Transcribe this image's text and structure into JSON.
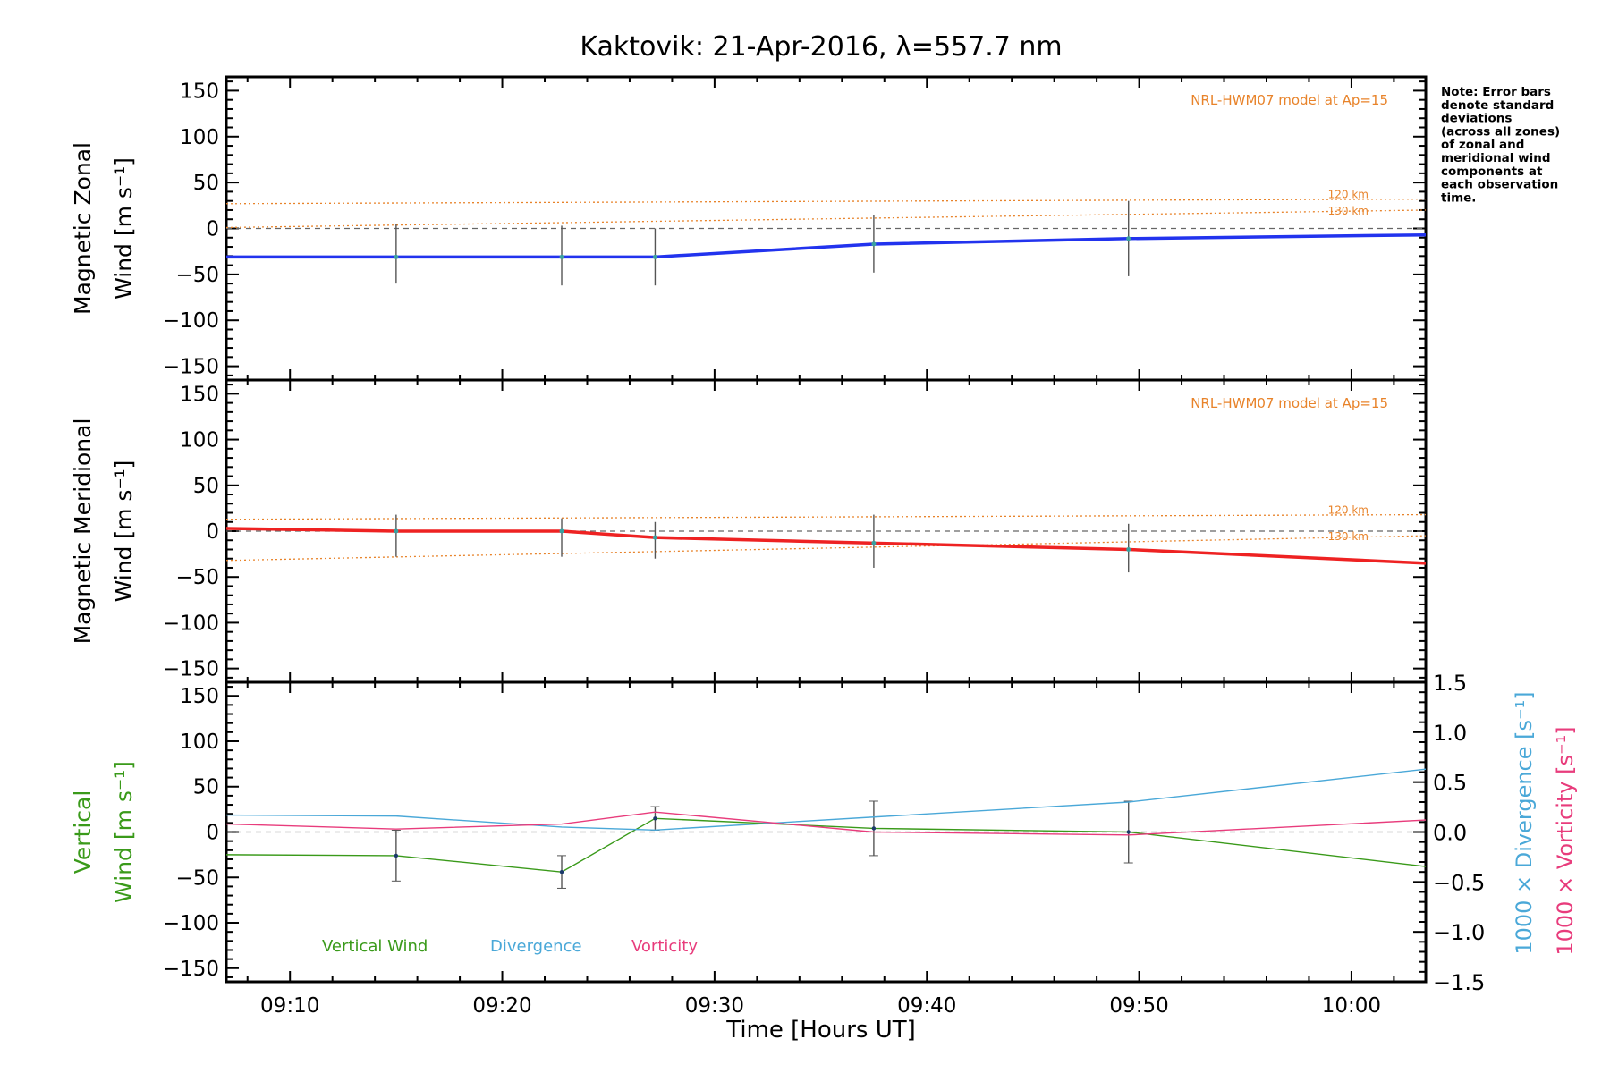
{
  "title": "Kaktovik: 21-Apr-2016, λ=557.7 nm",
  "note": [
    "Note: Error bars",
    "denote standard",
    "deviations",
    "(across all zones)",
    "of zonal and",
    "meridional wind",
    "components at",
    "each observation",
    "time."
  ],
  "colors": {
    "zonal": "#2233ee",
    "meridional": "#ee2222",
    "model": "#e8832a",
    "vertical": "#3a9a1a",
    "divergence": "#4aa8d8",
    "vorticity": "#e83c7c"
  },
  "chart_data": [
    {
      "type": "line",
      "panel": "zonal",
      "ylabel": [
        "Magnetic Zonal",
        "Wind [m s⁻¹]"
      ],
      "model_label": "NRL-HWM07 model at Ap=15",
      "x_unit": "minutes after 09:00 UT",
      "xlim": [
        7,
        63.5
      ],
      "ylim": [
        -165,
        165
      ],
      "yticks": [
        150,
        100,
        50,
        0,
        -50,
        -100,
        -150
      ],
      "series": [
        {
          "name": "Magnetic Zonal Wind",
          "x": [
            7,
            15,
            22.8,
            27.2,
            37.5,
            49.5,
            63.5
          ],
          "values": [
            -31,
            -31,
            -31,
            -31,
            -17,
            -11,
            -7
          ]
        }
      ],
      "model": [
        {
          "name": "120 km",
          "x": [
            7,
            63.5
          ],
          "values": [
            27,
            32
          ]
        },
        {
          "name": "130 km",
          "x": [
            7,
            63.5
          ],
          "values": [
            1,
            20
          ]
        }
      ],
      "errorbars": [
        {
          "x": 15,
          "low": -60,
          "high": 5
        },
        {
          "x": 22.8,
          "low": -62,
          "high": 3
        },
        {
          "x": 27.2,
          "low": -62,
          "high": 0
        },
        {
          "x": 37.5,
          "low": -48,
          "high": 15
        },
        {
          "x": 49.5,
          "low": -52,
          "high": 30
        }
      ]
    },
    {
      "type": "line",
      "panel": "meridional",
      "ylabel": [
        "Magnetic Meridional",
        "Wind [m s⁻¹]"
      ],
      "model_label": "NRL-HWM07 model at Ap=15",
      "xlim": [
        7,
        63.5
      ],
      "ylim": [
        -165,
        165
      ],
      "yticks": [
        150,
        100,
        50,
        0,
        -50,
        -100,
        -150
      ],
      "series": [
        {
          "name": "Magnetic Meridional Wind",
          "x": [
            7,
            15,
            22.8,
            27.2,
            37.5,
            49.5,
            63.5
          ],
          "values": [
            3,
            0,
            0,
            -7,
            -13,
            -20,
            -35
          ]
        }
      ],
      "model": [
        {
          "name": "120 km",
          "x": [
            7,
            63.5
          ],
          "values": [
            13,
            18
          ]
        },
        {
          "name": "130 km",
          "x": [
            7,
            63.5
          ],
          "values": [
            -32,
            -5
          ]
        }
      ],
      "errorbars": [
        {
          "x": 15,
          "low": -28,
          "high": 18
        },
        {
          "x": 22.8,
          "low": -28,
          "high": 14
        },
        {
          "x": 27.2,
          "low": -30,
          "high": 10
        },
        {
          "x": 37.5,
          "low": -40,
          "high": 18
        },
        {
          "x": 49.5,
          "low": -45,
          "high": 8
        }
      ]
    },
    {
      "type": "line",
      "panel": "vertical",
      "ylabel": [
        "Vertical",
        "Wind [m s⁻¹]"
      ],
      "y2label_divergence": "1000 × Divergence [s⁻¹]",
      "y2label_vorticity": "1000 × Vorticity [s⁻¹]",
      "xlabel": "Time [Hours UT]",
      "xlim": [
        7,
        63.5
      ],
      "ylim": [
        -165,
        165
      ],
      "yticks": [
        150,
        100,
        50,
        0,
        -50,
        -100,
        -150
      ],
      "y2lim": [
        -1.5,
        1.5
      ],
      "y2ticks": [
        "1.5",
        "1.0",
        "0.5",
        "0.0",
        "−0.5",
        "−1.0",
        "−1.5"
      ],
      "xticks": [
        "09:10",
        "09:20",
        "09:30",
        "09:40",
        "09:50",
        "10:00"
      ],
      "legend": [
        "Vertical Wind",
        "Divergence",
        "Vorticity"
      ],
      "series": [
        {
          "name": "Vertical Wind",
          "x": [
            7,
            15,
            22.8,
            27.2,
            37.5,
            49.5,
            63.5
          ],
          "values": [
            -25,
            -26,
            -44,
            15,
            4,
            0,
            -38
          ]
        },
        {
          "name": "Divergence",
          "axis": "y2",
          "x": [
            7,
            15,
            22.8,
            27.2,
            37.5,
            49.5,
            63.5
          ],
          "values": [
            0.17,
            0.16,
            0.05,
            0.02,
            0.15,
            0.3,
            0.63
          ]
        },
        {
          "name": "Vorticity",
          "axis": "y2",
          "x": [
            7,
            15,
            22.8,
            27.2,
            37.5,
            49.5,
            63.5
          ],
          "values": [
            0.08,
            0.03,
            0.08,
            0.2,
            0.0,
            -0.03,
            0.12
          ]
        }
      ],
      "errorbars": [
        {
          "x": 15,
          "low": -54,
          "high": 2
        },
        {
          "x": 22.8,
          "low": -62,
          "high": -26
        },
        {
          "x": 27.2,
          "low": 2,
          "high": 28
        },
        {
          "x": 37.5,
          "low": -26,
          "high": 34
        },
        {
          "x": 49.5,
          "low": -34,
          "high": 34
        }
      ]
    }
  ]
}
